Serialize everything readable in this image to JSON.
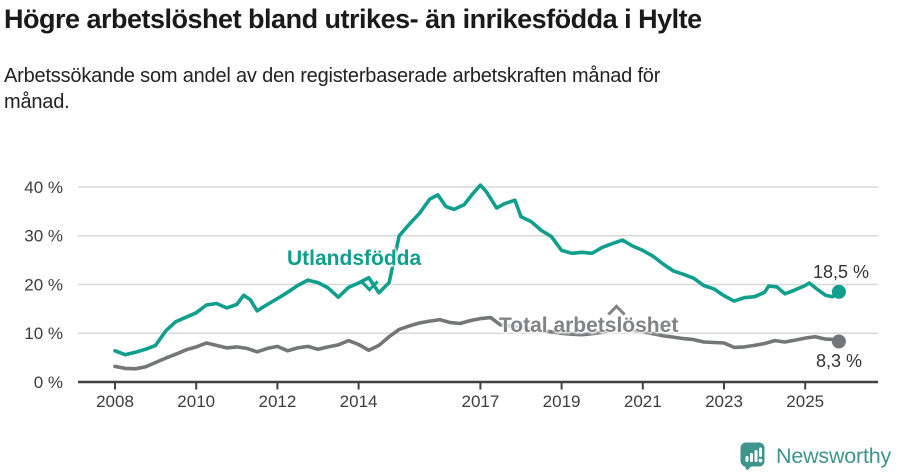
{
  "header": {
    "title": "Högre arbetslöshet bland utrikes- än inrikesfödda i Hylte",
    "subtitle": "Arbetssökande som andel av den registerbaserade arbetskraften månad för månad."
  },
  "chart_data": {
    "type": "line",
    "title": "Högre arbetslöshet bland utrikes- än inrikesfödda i Hylte",
    "xlabel": "",
    "ylabel": "",
    "ylim": [
      0,
      40
    ],
    "xlim": [
      2007.1,
      2026.8
    ],
    "grid": true,
    "legend_position": "inline-labels",
    "y_ticks": [
      0,
      10,
      20,
      30,
      40
    ],
    "y_tick_suffix": " %",
    "x_ticks": [
      2008,
      2010,
      2012,
      2014,
      2017,
      2019,
      2021,
      2023,
      2025
    ],
    "series": [
      {
        "name": "Utlandsfödda",
        "color": "#109e8d",
        "end_label": "18,5 %",
        "end_value": 18.5,
        "x": [
          2008.0,
          2008.25,
          2008.5,
          2008.75,
          2009.0,
          2009.25,
          2009.5,
          2009.75,
          2010.0,
          2010.25,
          2010.5,
          2010.75,
          2011.0,
          2011.17,
          2011.33,
          2011.5,
          2011.75,
          2012.0,
          2012.25,
          2012.5,
          2012.75,
          2013.0,
          2013.25,
          2013.5,
          2013.75,
          2014.0,
          2014.25,
          2014.5,
          2014.75,
          2015.0,
          2015.25,
          2015.5,
          2015.75,
          2015.95,
          2016.15,
          2016.35,
          2016.6,
          2016.8,
          2017.0,
          2017.15,
          2017.4,
          2017.6,
          2017.85,
          2018.0,
          2018.25,
          2018.5,
          2018.75,
          2019.0,
          2019.25,
          2019.5,
          2019.75,
          2020.0,
          2020.25,
          2020.5,
          2020.75,
          2021.0,
          2021.25,
          2021.5,
          2021.75,
          2022.0,
          2022.25,
          2022.5,
          2022.75,
          2023.0,
          2023.25,
          2023.5,
          2023.75,
          2024.0,
          2024.1,
          2024.3,
          2024.5,
          2024.75,
          2025.0,
          2025.1,
          2025.3,
          2025.5,
          2025.67,
          2025.83
        ],
        "values": [
          6.4,
          5.6,
          6.1,
          6.7,
          7.5,
          10.5,
          12.4,
          13.3,
          14.2,
          15.8,
          16.1,
          15.2,
          15.9,
          17.8,
          16.9,
          14.6,
          15.9,
          17.1,
          18.4,
          19.8,
          20.9,
          20.4,
          19.3,
          17.4,
          19.4,
          20.3,
          21.4,
          18.3,
          20.4,
          30.0,
          32.4,
          34.6,
          37.5,
          38.4,
          36.0,
          35.4,
          36.4,
          38.5,
          40.4,
          39.0,
          35.7,
          36.6,
          37.3,
          33.9,
          32.9,
          31.1,
          29.8,
          27.0,
          26.4,
          26.6,
          26.4,
          27.6,
          28.4,
          29.1,
          27.9,
          27.0,
          25.8,
          24.2,
          22.8,
          22.1,
          21.3,
          19.8,
          19.1,
          17.7,
          16.6,
          17.3,
          17.5,
          18.4,
          19.7,
          19.5,
          18.1,
          18.9,
          19.8,
          20.3,
          19.0,
          17.8,
          17.5,
          18.5
        ]
      },
      {
        "name": "Total arbetslöshet",
        "color": "#757677",
        "end_label": "8,3 %",
        "end_value": 8.3,
        "x": [
          2008.0,
          2008.25,
          2008.5,
          2008.75,
          2009.0,
          2009.25,
          2009.5,
          2009.75,
          2010.0,
          2010.25,
          2010.5,
          2010.75,
          2011.0,
          2011.25,
          2011.5,
          2011.75,
          2012.0,
          2012.25,
          2012.5,
          2012.75,
          2013.0,
          2013.25,
          2013.5,
          2013.75,
          2014.0,
          2014.25,
          2014.5,
          2014.75,
          2015.0,
          2015.25,
          2015.5,
          2015.75,
          2016.0,
          2016.25,
          2016.5,
          2016.75,
          2017.0,
          2017.25,
          2017.5,
          2017.75,
          2018.0,
          2018.25,
          2018.5,
          2018.75,
          2019.0,
          2019.25,
          2019.5,
          2019.75,
          2020.0,
          2020.25,
          2020.5,
          2020.75,
          2021.0,
          2021.25,
          2021.5,
          2021.75,
          2022.0,
          2022.25,
          2022.5,
          2022.75,
          2023.0,
          2023.25,
          2023.5,
          2023.75,
          2024.0,
          2024.25,
          2024.5,
          2024.75,
          2025.0,
          2025.25,
          2025.5,
          2025.75,
          2025.83
        ],
        "values": [
          3.2,
          2.8,
          2.7,
          3.1,
          4.0,
          4.9,
          5.7,
          6.6,
          7.2,
          8.0,
          7.5,
          7.0,
          7.2,
          6.9,
          6.2,
          6.9,
          7.3,
          6.4,
          7.0,
          7.3,
          6.7,
          7.2,
          7.6,
          8.5,
          7.7,
          6.5,
          7.5,
          9.3,
          10.8,
          11.5,
          12.1,
          12.5,
          12.8,
          12.2,
          12.0,
          12.6,
          13.0,
          13.2,
          11.7,
          11.5,
          11.2,
          11.0,
          10.6,
          10.3,
          10.0,
          9.8,
          9.7,
          9.9,
          10.2,
          10.8,
          11.0,
          10.7,
          10.3,
          9.9,
          9.5,
          9.2,
          8.9,
          8.7,
          8.2,
          8.1,
          8.0,
          7.1,
          7.2,
          7.5,
          7.9,
          8.5,
          8.2,
          8.6,
          9.0,
          9.3,
          8.8,
          8.7,
          8.3
        ]
      }
    ]
  },
  "footer": {
    "brand": "Newsworthy"
  }
}
